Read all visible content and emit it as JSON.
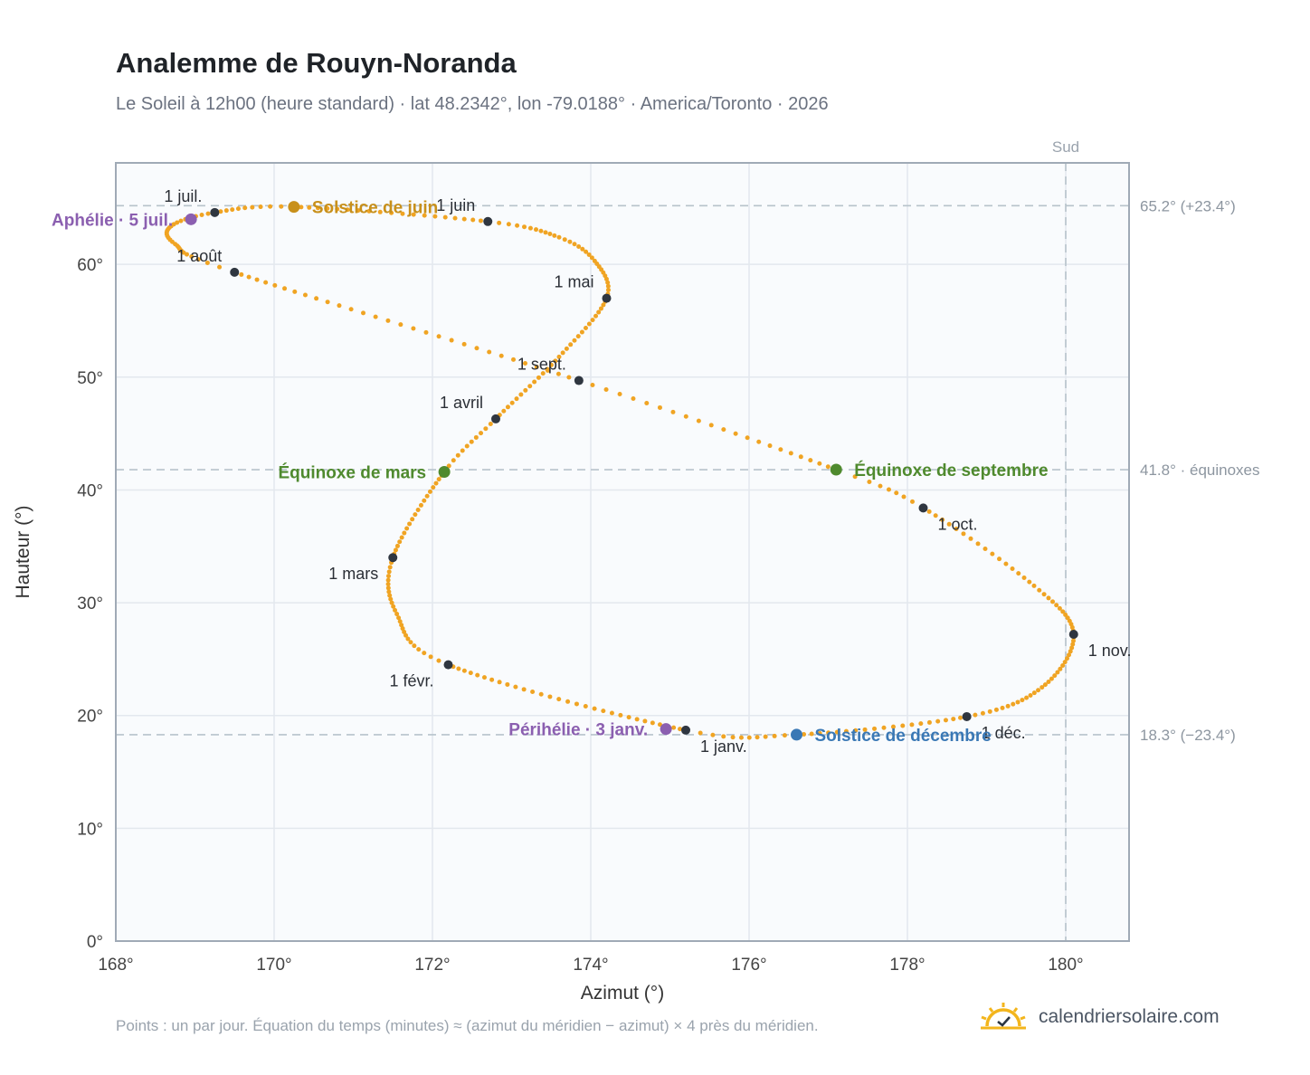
{
  "title": "Analemme de Rouyn-Noranda",
  "subtitle": "Le Soleil à 12h00 (heure standard) · lat 48.2342°, lon -79.0188° · America/Toronto · 2026",
  "footnote": "Points : un par jour. Équation du temps (minutes) ≈ (azimut du méridien − azimut) × 4 près du méridien.",
  "brand": {
    "text": "calendriersolaire.com",
    "icon": "sun-check-icon",
    "color": "#f3b51c"
  },
  "chart_data": {
    "type": "scatter",
    "xlabel": "Azimut (°)",
    "ylabel": "Hauteur (°)",
    "xlim": [
      168,
      180.8
    ],
    "ylim": [
      0,
      69
    ],
    "grid": true,
    "x_ticks": [
      168,
      170,
      172,
      174,
      176,
      178,
      180
    ],
    "x_tick_labels": [
      "168°",
      "170°",
      "172°",
      "174°",
      "176°",
      "178°",
      "180°"
    ],
    "y_ticks": [
      0,
      10,
      20,
      30,
      40,
      50,
      60
    ],
    "y_tick_labels": [
      "0°",
      "10°",
      "20°",
      "30°",
      "40°",
      "50°",
      "60°"
    ],
    "south_line": {
      "x": 180,
      "label": "Sud"
    },
    "reference_lines": [
      {
        "y": 65.2,
        "label": "65.2° (+23.4°)"
      },
      {
        "y": 41.8,
        "label": "41.8° · équinoxes"
      },
      {
        "y": 18.3,
        "label": "18.3° (−23.4°)"
      }
    ],
    "curve_color": "#f0a423",
    "curve_anchors": [
      {
        "day": 0,
        "x": 175.2,
        "y": 18.7
      },
      {
        "day": 31,
        "x": 172.2,
        "y": 24.5
      },
      {
        "day": 45,
        "x": 171.55,
        "y": 29
      },
      {
        "day": 59,
        "x": 171.5,
        "y": 34
      },
      {
        "day": 79,
        "x": 172.15,
        "y": 41.6
      },
      {
        "day": 90,
        "x": 172.8,
        "y": 46.3
      },
      {
        "day": 105,
        "x": 173.6,
        "y": 51.8
      },
      {
        "day": 120,
        "x": 174.2,
        "y": 57
      },
      {
        "day": 131,
        "x": 174.05,
        "y": 60.3
      },
      {
        "day": 140,
        "x": 173.6,
        "y": 62.4
      },
      {
        "day": 151,
        "x": 172.7,
        "y": 63.8
      },
      {
        "day": 171,
        "x": 170.25,
        "y": 65.1
      },
      {
        "day": 181,
        "x": 169.25,
        "y": 64.6
      },
      {
        "day": 190,
        "x": 168.7,
        "y": 63.4
      },
      {
        "day": 200,
        "x": 168.75,
        "y": 61.8
      },
      {
        "day": 212,
        "x": 169.5,
        "y": 59.3
      },
      {
        "day": 243,
        "x": 173.85,
        "y": 49.7
      },
      {
        "day": 265,
        "x": 177.1,
        "y": 41.8
      },
      {
        "day": 273,
        "x": 178.2,
        "y": 38.4
      },
      {
        "day": 290,
        "x": 179.6,
        "y": 31.5
      },
      {
        "day": 304,
        "x": 180.1,
        "y": 27.2
      },
      {
        "day": 320,
        "x": 179.7,
        "y": 22.5
      },
      {
        "day": 334,
        "x": 178.75,
        "y": 19.9
      },
      {
        "day": 354,
        "x": 176.6,
        "y": 18.3
      },
      {
        "day": 365,
        "x": 175.2,
        "y": 18.7
      }
    ],
    "months": [
      {
        "label": "1 janv.",
        "x": 175.2,
        "y": 18.7,
        "label_pos": "below-right"
      },
      {
        "label": "1 févr.",
        "x": 172.2,
        "y": 24.5,
        "label_pos": "below-left"
      },
      {
        "label": "1 mars",
        "x": 171.5,
        "y": 34.0,
        "label_pos": "below-left"
      },
      {
        "label": "1 avril",
        "x": 172.8,
        "y": 46.3,
        "label_pos": "above-left"
      },
      {
        "label": "1 mai",
        "x": 174.2,
        "y": 57.0,
        "label_pos": "above-left"
      },
      {
        "label": "1 juin",
        "x": 172.7,
        "y": 63.8,
        "label_pos": "above-left"
      },
      {
        "label": "1 juil.",
        "x": 169.25,
        "y": 64.6,
        "label_pos": "above-left"
      },
      {
        "label": "1 août",
        "x": 169.5,
        "y": 59.3,
        "label_pos": "above-left"
      },
      {
        "label": "1 sept.",
        "x": 173.85,
        "y": 49.7,
        "label_pos": "above-left"
      },
      {
        "label": "1 oct.",
        "x": 178.2,
        "y": 38.4,
        "label_pos": "below-right"
      },
      {
        "label": "1 nov.",
        "x": 180.1,
        "y": 27.2,
        "label_pos": "below-right"
      },
      {
        "label": "1 déc.",
        "x": 178.75,
        "y": 19.9,
        "label_pos": "below-right"
      }
    ],
    "events": [
      {
        "label": "Solstice de juin",
        "x": 170.25,
        "y": 65.1,
        "color": "#c8901b",
        "label_pos": "right"
      },
      {
        "label": "Aphélie · 5 juil.",
        "x": 168.95,
        "y": 64.0,
        "color": "#8b5fb0",
        "label_pos": "left"
      },
      {
        "label": "Équinoxe de mars",
        "x": 172.15,
        "y": 41.6,
        "color": "#4f8a2e",
        "label_pos": "left"
      },
      {
        "label": "Équinoxe de septembre",
        "x": 177.1,
        "y": 41.8,
        "color": "#4f8a2e",
        "label_pos": "right"
      },
      {
        "label": "Périhélie · 3 janv.",
        "x": 174.95,
        "y": 18.8,
        "color": "#8b5fb0",
        "label_pos": "left"
      },
      {
        "label": "Solstice de décembre",
        "x": 176.6,
        "y": 18.3,
        "color": "#3a78b5",
        "label_pos": "right"
      }
    ]
  }
}
